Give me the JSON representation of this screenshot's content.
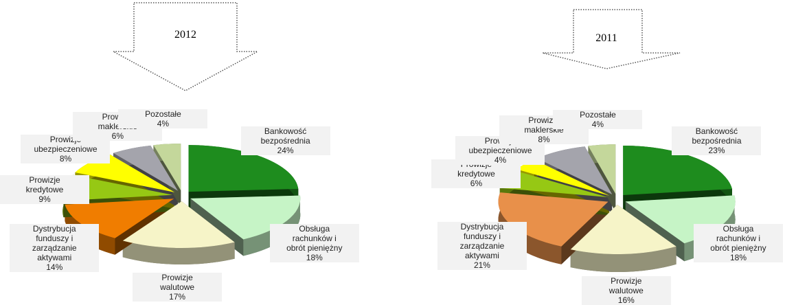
{
  "chart_data": [
    {
      "type": "pie3d",
      "title": "2012",
      "categories": [
        "Bankowość\nbezpośrednia",
        "Obsługa\nrachunków i\nobrót pieniężny",
        "Prowizje\nwalutowe",
        "Dystrybucja\nfunduszy i\nzarządzanie\naktywami",
        "Prowizje\nkredytowe",
        "Prowizje\nubezpieczeniowe",
        "Prowizje\nmaklerskie",
        "Pozostałe"
      ],
      "values": [
        24,
        18,
        17,
        14,
        9,
        8,
        6,
        4
      ],
      "value_labels": [
        "24%",
        "18%",
        "17%",
        "14%",
        "9%",
        "8%",
        "6%",
        "4%"
      ],
      "colors": [
        "#1e8c1e",
        "#c6f4c6",
        "#f6f4c8",
        "#f07d00",
        "#96c814",
        "#ffff00",
        "#a4a4ac",
        "#c4d79b"
      ]
    },
    {
      "type": "pie3d",
      "title": "2011",
      "categories": [
        "Bankowość\nbezpośrednia",
        "Obsługa\nrachunków i\nobrót pieniężny",
        "Prowizje\nwalutowe",
        "Dystrybucja\nfunduszy i\nzarządzanie\naktywami",
        "Prowizje\nkredytowe",
        "Prowizje\nubezpieczeniowe",
        "Prowizje\nmaklerskie",
        "Pozostałe"
      ],
      "values": [
        23,
        18,
        16,
        21,
        6,
        4,
        8,
        4
      ],
      "value_labels": [
        "23%",
        "18%",
        "16%",
        "21%",
        "6%",
        "4%",
        "8%",
        "4%"
      ],
      "colors": [
        "#1e8c1e",
        "#c6f4c6",
        "#f6f4c8",
        "#e8904a",
        "#96c814",
        "#ffff00",
        "#a4a4ac",
        "#c4d79b"
      ]
    }
  ]
}
